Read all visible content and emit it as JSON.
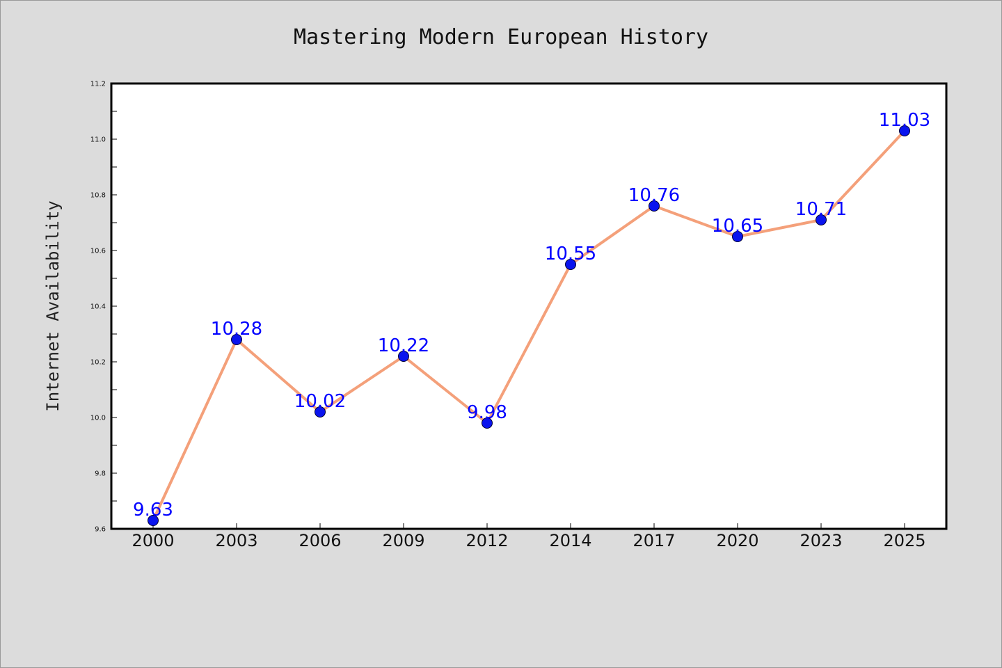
{
  "chart_data": {
    "type": "line",
    "title": "Mastering Modern European History",
    "xlabel": "",
    "ylabel": "Internet Availability",
    "categories": [
      "2000",
      "2003",
      "2006",
      "2009",
      "2012",
      "2014",
      "2017",
      "2020",
      "2023",
      "2025"
    ],
    "series": [
      {
        "values": [
          9.63,
          10.28,
          10.02,
          10.22,
          9.98,
          10.55,
          10.76,
          10.65,
          10.71,
          11.03
        ],
        "labels": [
          "9.63",
          "10.28",
          "10.02",
          "10.22",
          "9.98",
          "10.55",
          "10.76",
          "10.65",
          "10.71",
          "11.03"
        ]
      }
    ],
    "ylim": [
      9.6,
      11.2
    ],
    "yticks": [
      9.6,
      9.8,
      10.0,
      10.2,
      10.4,
      10.6,
      10.8,
      11.0,
      11.2
    ],
    "ytick_labels": [
      "9.6",
      "9.8",
      "10.0",
      "10.2",
      "10.4",
      "10.6",
      "10.8",
      "11.0",
      "11.2"
    ],
    "grid": false,
    "legend": "none",
    "colors": {
      "line": "#f4a07a",
      "marker": "#0a14ee",
      "data_label": "#0000ff",
      "background": "#dcdcdc",
      "plot_background": "#ffffff"
    }
  }
}
